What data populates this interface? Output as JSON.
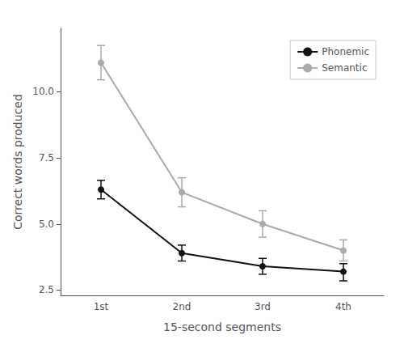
{
  "chart_data": {
    "type": "line",
    "categories": [
      "1st",
      "2nd",
      "3rd",
      "4th"
    ],
    "series": [
      {
        "name": "Phonemic",
        "color": "#111111",
        "marker": "circle",
        "values": [
          6.3,
          3.9,
          3.4,
          3.2
        ],
        "ci_low": [
          5.95,
          3.6,
          3.1,
          2.85
        ],
        "ci_high": [
          6.65,
          4.2,
          3.7,
          3.5
        ]
      },
      {
        "name": "Semantic",
        "color": "#aaaaaa",
        "marker": "circle",
        "values": [
          11.1,
          6.2,
          5.0,
          4.0
        ],
        "ci_low": [
          10.45,
          5.65,
          4.5,
          3.6
        ],
        "ci_high": [
          11.75,
          6.75,
          5.5,
          4.4
        ]
      }
    ],
    "xlabel": "15-second segments",
    "ylabel": "Correct words produced",
    "ylim": [
      2.3,
      12.4
    ],
    "yticks": [
      2.5,
      {
        "value": 5.0,
        "label": "5.0"
      },
      {
        "value": 7.5,
        "label": "7.5"
      },
      {
        "value": 10.0,
        "label": "10.0"
      }
    ],
    "grid": false,
    "legend": "upper right"
  }
}
